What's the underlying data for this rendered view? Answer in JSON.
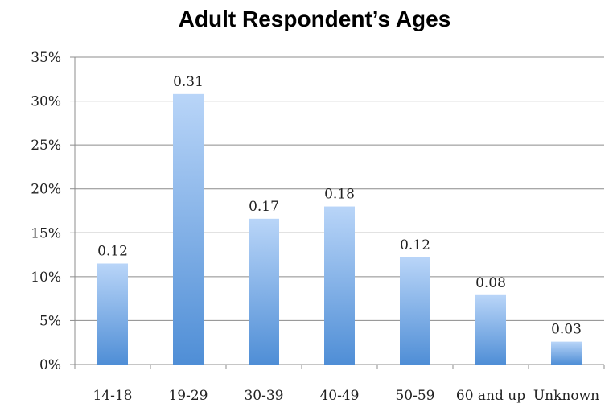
{
  "chart_data": {
    "type": "bar",
    "title": "Adult Respondent’s Ages",
    "xlabel": "",
    "ylabel": "",
    "categories": [
      "14-18",
      "19-29",
      "30-39",
      "40-49",
      "50-59",
      "60 and up",
      "Unknown"
    ],
    "values": [
      0.115,
      0.308,
      0.166,
      0.18,
      0.122,
      0.079,
      0.026
    ],
    "data_labels": [
      "0.12",
      "0.31",
      "0.17",
      "0.18",
      "0.12",
      "0.08",
      "0.03"
    ],
    "ylim": [
      0,
      0.35
    ],
    "yticks": [
      0,
      0.05,
      0.1,
      0.15,
      0.2,
      0.25,
      0.3,
      0.35
    ],
    "ytick_labels": [
      "0%",
      "5%",
      "10%",
      "15%",
      "20%",
      "25%",
      "30%",
      "35%"
    ],
    "grid": true,
    "legend": "none",
    "colors": {
      "bar_top": "#b9d5f8",
      "bar_bottom": "#4f8ed6",
      "grid": "#8c8c8c"
    }
  }
}
